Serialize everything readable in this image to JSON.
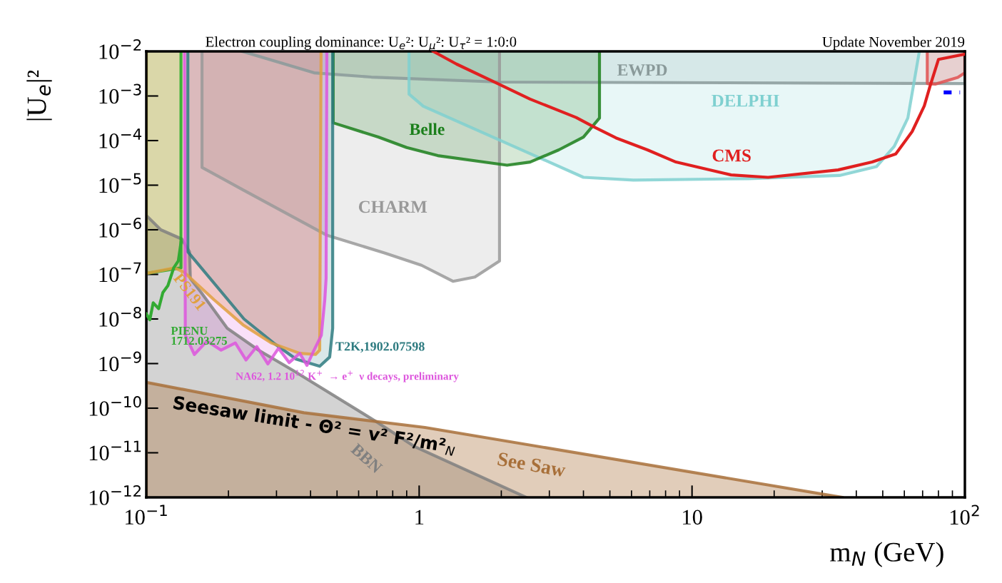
{
  "chart_data": {
    "type": "area",
    "title": "Electron coupling dominance: U$_{e}$²: U$_{μ}$²: U$_{τ}$² = 1:0:0",
    "subtitle": "Update November 2019",
    "xlabel": "m$_{N}$ (GeV)",
    "ylabel": "|U$_{e}$|²",
    "log": "xy",
    "xlim": [
      0.1,
      100
    ],
    "ylim": [
      1e-12,
      0.01
    ],
    "xticks": [
      {
        "value": 0.1,
        "label": "10$^{−1}$"
      },
      1,
      10,
      {
        "value": 100,
        "label": "10$^{2}$"
      }
    ],
    "yticks": [
      {
        "value": 1e-12,
        "label": "10$^{−12}$"
      },
      {
        "value": 1e-11,
        "label": "10$^{−11}$"
      },
      {
        "value": 1e-10,
        "label": "10$^{−10}$"
      },
      {
        "value": 1e-09,
        "label": "10$^{−9}$"
      },
      {
        "value": 1e-08,
        "label": "10$^{−8}$"
      },
      {
        "value": 1e-07,
        "label": "10$^{−7}$"
      },
      {
        "value": 1e-06,
        "label": "10$^{−6}$"
      },
      {
        "value": 1e-05,
        "label": "10$^{−5}$"
      },
      {
        "value": 0.0001,
        "label": "10$^{−4}$"
      },
      {
        "value": 0.001,
        "label": "10$^{−3}$"
      },
      {
        "value": 0.01,
        "label": "10$^{−2}$"
      }
    ],
    "series": [
      {
        "name": "BBN",
        "color": "#808080",
        "x": [
          0.1,
          0.1,
          0.113,
          0.135,
          0.144,
          0.145,
          0.159,
          0.198,
          0.258,
          0.348,
          0.692,
          0.957,
          2.47
        ],
        "values": [
          1e-12,
          2.1e-06,
          1e-06,
          6.2e-07,
          3.2e-07,
          8.1e-08,
          3.9e-08,
          6.2e-09,
          2e-09,
          6.8e-10,
          5.1e-11,
          1.4e-11,
          1e-12
        ]
      },
      {
        "name": "See Saw",
        "color": "#a8703a",
        "x": [
          0.1,
          0.1,
          0.378,
          1.05,
          35.5
        ],
        "values": [
          1e-12,
          3.8e-10,
          7.9e-11,
          3.7e-11,
          1e-12
        ]
      },
      {
        "name": "CHARM",
        "color": "#999999",
        "x": [
          0.16,
          0.16,
          0.225,
          0.46,
          0.75,
          1.02,
          1.33,
          1.6,
          1.97,
          1.97
        ],
        "values": [
          0.01,
          2.5e-05,
          8e-06,
          7.5e-07,
          3e-07,
          1.6e-07,
          7e-08,
          8.7e-08,
          2e-07,
          0.01
        ]
      },
      {
        "name": "EWPD",
        "color": "#8a9a9a",
        "x": [
          0.225,
          0.412,
          0.668,
          1.97,
          100,
          100
        ],
        "values": [
          0.01,
          0.0033,
          0.00265,
          0.00205,
          0.0019,
          0.01
        ]
      },
      {
        "name": "DELPHI",
        "color": "#7fd0d0",
        "x": [
          0.918,
          0.918,
          1.035,
          4.0,
          6.1,
          16.1,
          34.7,
          47.4,
          55.1,
          61.8,
          68.1
        ],
        "values": [
          0.01,
          0.0011,
          0.00059,
          1.5e-05,
          1.3e-05,
          1.4e-05,
          1.65e-05,
          2.6e-05,
          7.4e-05,
          0.00032,
          0.01
        ]
      },
      {
        "name": "Belle",
        "color": "#1b7f1b",
        "x": [
          0.484,
          0.484,
          0.708,
          0.9,
          1.17,
          1.86,
          2.1,
          2.55,
          3.25,
          4.0,
          4.58,
          4.58
        ],
        "values": [
          0.01,
          0.00025,
          0.00012,
          7e-05,
          4.6e-05,
          3.1e-05,
          2.8e-05,
          3.3e-05,
          6.2e-05,
          0.00012,
          0.00032,
          0.01
        ]
      },
      {
        "color": "#e05050",
        "x": [
          72.8,
          72.8,
          78.1,
          94.2,
          100,
          100
        ],
        "values": [
          0.01,
          0.0019,
          0.00185,
          0.0026,
          0.0033,
          0.01
        ]
      },
      {
        "color": "#22aa22",
        "x": [
          0.1,
          0.1,
          0.134,
          0.134
        ],
        "values": [
          0.01,
          1.05e-07,
          1.4e-07,
          0.01
        ]
      },
      {
        "name": "T2K,1902.07598",
        "color": "#2e7b80",
        "x": [
          0.142,
          0.142,
          0.228,
          0.296,
          0.354,
          0.432,
          0.47,
          0.482,
          0.482
        ],
        "values": [
          0.01,
          3.2e-07,
          1e-08,
          2.75e-09,
          1.26e-09,
          8.7e-10,
          1.4e-09,
          6.2e-09,
          0.01
        ]
      },
      {
        "name": "PS191",
        "color": "#e0a040",
        "x": [
          0.1,
          0.1,
          0.127,
          0.138,
          0.177,
          0.226,
          0.287,
          0.365,
          0.417,
          0.432,
          0.437
        ],
        "values": [
          0.01,
          1.05e-07,
          1.4e-07,
          1.1e-07,
          2.7e-08,
          7.4e-09,
          2.9e-09,
          1.7e-09,
          1.6e-09,
          2e-09,
          0.01
        ]
      },
      {
        "name": "NA62, 1.2 10$^{12}$ K$^{+}$  → e$^{+}$  ν decays, preliminary",
        "color": "#dd55dd",
        "x": [
          0.138,
          0.139,
          0.15,
          0.167,
          0.188,
          0.212,
          0.232,
          0.254,
          0.279,
          0.305,
          0.334,
          0.365,
          0.388,
          0.412,
          0.438,
          0.451,
          0.456,
          0.459
        ],
        "values": [
          0.01,
          4.3e-09,
          1.6e-09,
          3.2e-09,
          2e-09,
          2.9e-09,
          1.2e-09,
          2.4e-09,
          9.8e-10,
          2.2e-09,
          1.05e-09,
          1.7e-09,
          9.1e-10,
          2e-09,
          4.3e-09,
          2.7e-08,
          8.1e-08,
          0.01
        ]
      },
      {
        "name": "PIENU\n1712.03275",
        "type": "line",
        "color": "#33aa33",
        "x": [
          0.1,
          0.103,
          0.106,
          0.111,
          0.115,
          0.12,
          0.126,
          0.131,
          0.134
        ],
        "values": [
          1.3e-08,
          9.6e-09,
          2.3e-08,
          1.7e-08,
          3.9e-08,
          5.6e-08,
          1.4e-07,
          2e-07,
          5.2e-07
        ]
      },
      {
        "name": "CMS",
        "type": "line",
        "color": "#e02020",
        "x": [
          1.126,
          1.37,
          1.94,
          2.55,
          3.76,
          4.32,
          5.26,
          6.86,
          8.73,
          13.9,
          19.0,
          34.3,
          45.7,
          55.8,
          64.1,
          71.0,
          74.5,
          80.0,
          100
        ],
        "values": [
          0.01,
          0.0052,
          0.0019,
          0.00085,
          0.00033,
          0.00021,
          0.000115,
          6.2e-05,
          3.3e-05,
          1.7e-05,
          1.5e-05,
          2.2e-05,
          3.3e-05,
          5e-05,
          0.00016,
          0.0006,
          0.00165,
          0.0066,
          0.0087
        ]
      },
      {
        "type": "line",
        "color": "#0000ff",
        "line_style": "dashed",
        "x": [
          83.6,
          96
        ],
        "values": [
          0.0012,
          0.0012
        ]
      }
    ],
    "annotations": [
      "Seesaw limit - Θ² = v² F²/m²$_{N}$"
    ]
  }
}
